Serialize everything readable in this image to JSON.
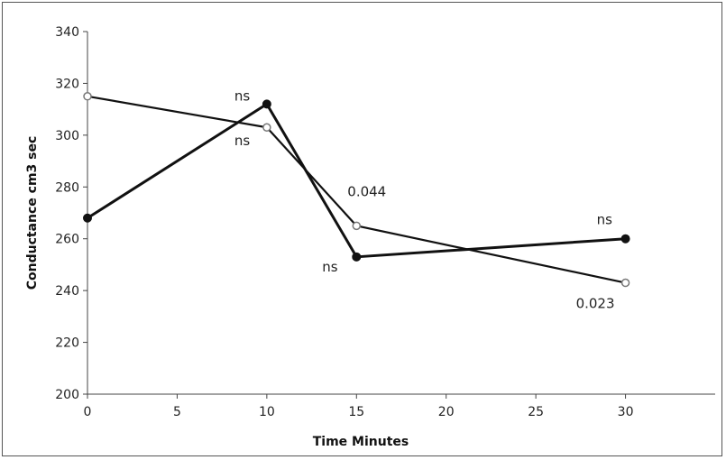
{
  "chart_data": {
    "type": "line",
    "title": "",
    "xlabel": "Time Minutes",
    "ylabel": "Conductance cm3 sec",
    "xlim": [
      0,
      35
    ],
    "ylim": [
      200,
      340
    ],
    "xticks": [
      0,
      5,
      10,
      15,
      20,
      25,
      30
    ],
    "yticks": [
      200,
      220,
      240,
      260,
      280,
      300,
      320,
      340
    ],
    "grid": false,
    "series": [
      {
        "marker": "filled-circle",
        "color": "#111111",
        "x": [
          0,
          10,
          15,
          30
        ],
        "y": [
          268,
          312,
          253,
          260
        ],
        "labels": [
          "",
          "ns",
          "ns",
          "ns"
        ]
      },
      {
        "marker": "open-circle",
        "color": "#111111",
        "x": [
          0,
          10,
          15,
          30
        ],
        "y": [
          315,
          303,
          265,
          243
        ],
        "labels": [
          "",
          "ns",
          "0.044",
          "0.023"
        ]
      }
    ]
  }
}
